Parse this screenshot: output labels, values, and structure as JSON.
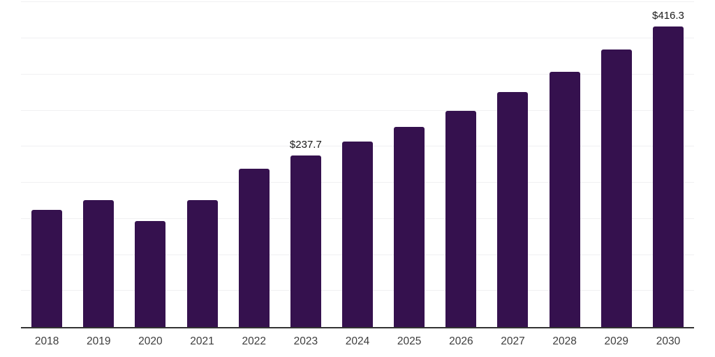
{
  "chart_data": {
    "type": "bar",
    "title": "",
    "xlabel": "",
    "ylabel": "",
    "legend_position": "none",
    "grid": true,
    "gridline_step": 50,
    "ylim": [
      0,
      450
    ],
    "categories": [
      "2018",
      "2019",
      "2020",
      "2021",
      "2022",
      "2023",
      "2024",
      "2025",
      "2026",
      "2027",
      "2028",
      "2029",
      "2030"
    ],
    "values": [
      162.1,
      175.6,
      146.7,
      176.3,
      219.8,
      237.7,
      256.7,
      277.5,
      300.0,
      325.6,
      354.2,
      384.9,
      416.3
    ],
    "value_labels": {
      "2023": "$237.7",
      "2030": "$416.3"
    },
    "colors": {
      "bar": "#35114E",
      "axis_line": "#333333",
      "gridline": "#F0F0F2",
      "value_label_text": "#1A1A1A",
      "tick_label_text": "#3D3D3D",
      "background": "#FFFFFF"
    }
  }
}
